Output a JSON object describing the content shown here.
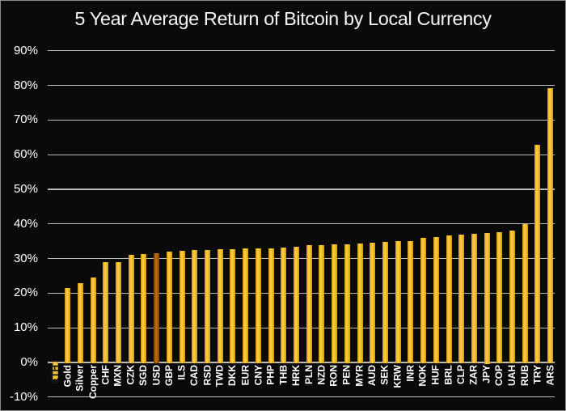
{
  "title": "5 Year Average Return of Bitcoin by Local Currency",
  "chart_data": {
    "type": "bar",
    "title": "5 Year Average Return of Bitcoin by Local Currency",
    "categories": [
      "ETH",
      "Gold",
      "Silver",
      "Copper",
      "CHF",
      "MXN",
      "CZK",
      "SGD",
      "USD",
      "GBP",
      "ILS",
      "CAD",
      "RSD",
      "TWD",
      "DKK",
      "EUR",
      "CNY",
      "PHP",
      "THB",
      "HRK",
      "PLN",
      "NZD",
      "RON",
      "PEN",
      "MYR",
      "AUD",
      "SEK",
      "KRW",
      "INR",
      "NOK",
      "HUF",
      "BRL",
      "CLP",
      "ZAR",
      "JPY",
      "COP",
      "UAH",
      "RUB",
      "TRY",
      "ARS"
    ],
    "values": [
      -5,
      21.4,
      22.8,
      24.5,
      29,
      29,
      31,
      31.2,
      31.5,
      32,
      32.2,
      32.4,
      32.5,
      32.6,
      32.7,
      32.9,
      33,
      33,
      33.1,
      33.3,
      33.8,
      33.9,
      34,
      34.2,
      34.4,
      34.6,
      34.8,
      35,
      35.1,
      35.9,
      36.3,
      36.6,
      37,
      37.1,
      37.5,
      37.7,
      38,
      39.9,
      62.9,
      79.1
    ],
    "highlight_category": "USD",
    "dark_label_categories": [
      "ETH"
    ],
    "yticks": [
      {
        "v": 90,
        "label": "90%"
      },
      {
        "v": 80,
        "label": "80%"
      },
      {
        "v": 70,
        "label": "70%"
      },
      {
        "v": 60,
        "label": "60%"
      },
      {
        "v": 50,
        "label": "50%"
      },
      {
        "v": 40,
        "label": "40%"
      },
      {
        "v": 30,
        "label": "30%"
      },
      {
        "v": 20,
        "label": "20%"
      },
      {
        "v": 10,
        "label": "10%"
      },
      {
        "v": 0,
        "label": "0%"
      },
      {
        "v": -10,
        "label": "-10%"
      }
    ],
    "ylim": [
      -10,
      90
    ],
    "grid": true,
    "legend": false,
    "colors": {
      "background": "#0a0a0a",
      "grid": "#bcbcbc",
      "text": "#ffffff",
      "bar": "#f0b91e",
      "bar_light": "#fed24a",
      "bar_dark": "#cf9a10",
      "bar_highlight": "#a85a0d",
      "bar_highlight_light": "#bd6f16",
      "bar_highlight_dark": "#7d4005"
    }
  }
}
